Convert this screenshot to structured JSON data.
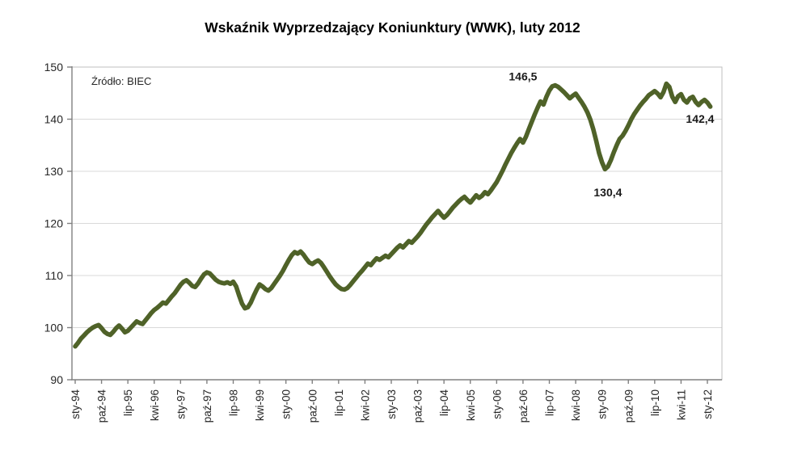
{
  "chart_data": {
    "type": "line",
    "title": "Wskaźnik Wyprzedzający Koniunktury (WWK), luty 2012",
    "source_note": "Źródło: BIEC",
    "legend": "none",
    "grid": "horizontal",
    "ylim": [
      90,
      150
    ],
    "y_ticks": [
      150,
      140,
      130,
      120,
      110,
      100,
      90
    ],
    "x_tick_labels": [
      "sty-94",
      "paź-94",
      "lip-95",
      "kwi-96",
      "sty-97",
      "paź-97",
      "lip-98",
      "kwi-99",
      "sty-00",
      "paź-00",
      "lip-01",
      "kwi-02",
      "sty-03",
      "paź-03",
      "lip-04",
      "kwi-05",
      "sty-06",
      "paź-06",
      "lip-07",
      "kwi-08",
      "sty-09",
      "paź-09",
      "lip-10",
      "kwi-11",
      "sty-12"
    ],
    "x_months_per_tick": 9,
    "series": [
      {
        "name": "WWK",
        "frequency": "monthly",
        "first_point_label": "sty-94",
        "last_point_label": "luty 2012",
        "values": [
          96.4,
          97.1,
          97.9,
          98.5,
          99.1,
          99.6,
          100.0,
          100.3,
          100.5,
          99.9,
          99.2,
          98.8,
          98.6,
          99.2,
          99.9,
          100.4,
          99.8,
          99.1,
          99.4,
          100.0,
          100.6,
          101.2,
          100.9,
          100.7,
          101.4,
          102.1,
          102.8,
          103.4,
          103.8,
          104.3,
          104.8,
          104.6,
          105.3,
          106.0,
          106.6,
          107.4,
          108.2,
          108.8,
          109.1,
          108.6,
          108.0,
          107.8,
          108.5,
          109.4,
          110.2,
          110.6,
          110.4,
          109.8,
          109.2,
          108.8,
          108.6,
          108.5,
          108.7,
          108.4,
          108.8,
          107.9,
          106.2,
          104.6,
          103.7,
          103.9,
          104.8,
          106.1,
          107.3,
          108.3,
          107.9,
          107.4,
          107.1,
          107.6,
          108.4,
          109.2,
          110.0,
          110.9,
          112.0,
          113.0,
          113.9,
          114.5,
          114.2,
          114.6,
          114.0,
          113.2,
          112.5,
          112.2,
          112.6,
          112.9,
          112.4,
          111.6,
          110.7,
          109.8,
          109.0,
          108.3,
          107.8,
          107.4,
          107.3,
          107.6,
          108.2,
          108.9,
          109.6,
          110.3,
          110.9,
          111.6,
          112.3,
          112.0,
          112.7,
          113.3,
          113.0,
          113.4,
          113.8,
          113.5,
          114.1,
          114.7,
          115.3,
          115.8,
          115.4,
          116.0,
          116.6,
          116.3,
          116.9,
          117.5,
          118.2,
          119.0,
          119.8,
          120.5,
          121.2,
          121.8,
          122.4,
          121.7,
          121.1,
          121.6,
          122.3,
          123.0,
          123.6,
          124.2,
          124.7,
          125.1,
          124.5,
          124.0,
          124.7,
          125.4,
          124.9,
          125.3,
          126.0,
          125.6,
          126.3,
          127.1,
          127.9,
          129.0,
          130.1,
          131.3,
          132.4,
          133.5,
          134.5,
          135.4,
          136.2,
          135.5,
          136.6,
          138.1,
          139.5,
          140.9,
          142.2,
          143.4,
          142.8,
          144.3,
          145.5,
          146.3,
          146.5,
          146.2,
          145.7,
          145.2,
          144.6,
          144.0,
          144.5,
          144.9,
          144.1,
          143.3,
          142.4,
          141.3,
          139.9,
          138.1,
          135.9,
          133.5,
          131.7,
          130.4,
          130.9,
          132.1,
          133.6,
          135.0,
          136.2,
          136.8,
          137.7,
          138.8,
          140.0,
          141.0,
          141.8,
          142.6,
          143.3,
          143.9,
          144.6,
          145.0,
          145.4,
          144.9,
          144.2,
          145.2,
          146.8,
          146.2,
          144.3,
          143.3,
          144.4,
          144.8,
          143.7,
          143.2,
          144.0,
          144.3,
          143.3,
          142.7,
          143.3,
          143.7,
          143.2,
          142.4
        ]
      }
    ],
    "annotations": [
      {
        "name": "peak-2007",
        "text": "146,5",
        "anchor_month": 153,
        "anchor_value": 148.2
      },
      {
        "name": "trough-2009",
        "text": "130,4",
        "anchor_month": 182,
        "anchor_value": 126.0
      },
      {
        "name": "latest-value",
        "text": "142,4",
        "anchor_month": 213.5,
        "anchor_value": 140.1
      }
    ],
    "colors": {
      "line": "#4F6228",
      "gridline": "#D9D9D9",
      "plot_border": "#BFBFBF",
      "axis": "#808080",
      "text": "#262626",
      "background": "#FFFFFF"
    }
  }
}
